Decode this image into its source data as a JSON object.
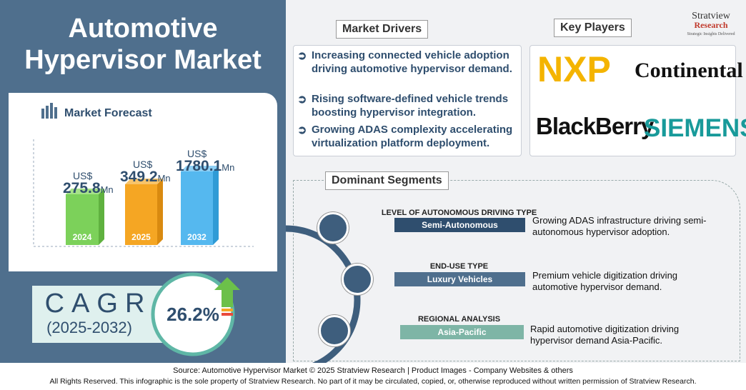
{
  "title": "Automotive Hypervisor Market",
  "forecast": {
    "heading": "Market Forecast",
    "bars": [
      {
        "prefix": "US$",
        "value": "275.8",
        "unit": "Mn",
        "year": "2024"
      },
      {
        "prefix": "US$",
        "value": "349.2",
        "unit": "Mn",
        "year": "2025"
      },
      {
        "prefix": "US$",
        "value": "1780.1",
        "unit": "Mn",
        "year": "2032"
      }
    ]
  },
  "cagr": {
    "label": "CAGR",
    "period": "(2025-2032)",
    "value": "26.2%"
  },
  "drivers": {
    "heading": "Market Drivers",
    "items": [
      "Increasing connected vehicle adoption driving automotive hypervisor demand.",
      "Rising software-defined vehicle trends boosting hypervisor integration.",
      "Growing ADAS complexity accelerating virtualization platform deployment."
    ]
  },
  "key_players": {
    "heading": "Key Players",
    "logos": [
      "NXP",
      "Continental",
      "BlackBerry",
      "SIEMENS"
    ]
  },
  "brand": {
    "name": "Stratview",
    "sub": "Research",
    "tagline": "Strategic Insights Delivered"
  },
  "segments": {
    "heading": "Dominant Segments",
    "items": [
      {
        "category": "LEVEL OF AUTONOMOUS DRIVING TYPE",
        "segment": "Semi-Autonomous",
        "description": "Growing ADAS infrastructure driving semi-autonomous hypervisor adoption."
      },
      {
        "category": "END-USE TYPE",
        "segment": "Luxury Vehicles",
        "description": "Premium vehicle digitization driving automotive hypervisor demand."
      },
      {
        "category": "REGIONAL ANALYSIS",
        "segment": "Asia-Pacific",
        "description": "Rapid automotive digitization driving hypervisor demand Asia-Pacific."
      }
    ]
  },
  "footer": {
    "source": "Source:  Automotive Hypervisor Market © 2025 Stratview Research | Product Images  - Company Websites & others",
    "rights": "All Rights Reserved. This infographic is the sole property of Stratview Research. No part of it may be circulated, copied, or, otherwise reproduced without written permission of Stratview Research."
  }
}
